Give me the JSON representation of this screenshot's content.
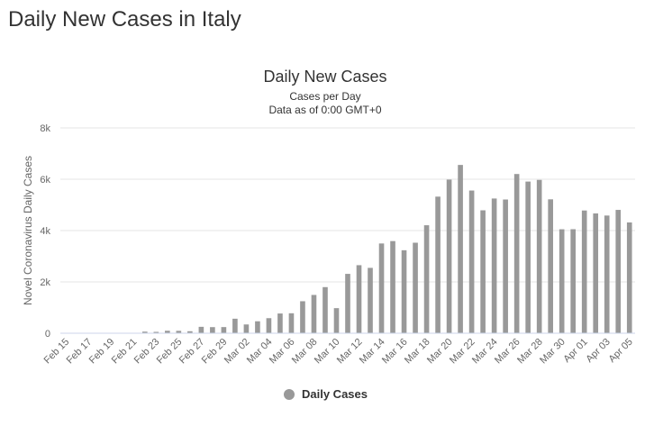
{
  "page": {
    "title": "Daily New Cases in Italy"
  },
  "colors": {
    "bar": "#999999",
    "grid": "#e6e6e6",
    "axis": "#ccd6eb"
  },
  "chart_data": {
    "type": "bar",
    "title": "Daily New Cases",
    "subtitle_lines": [
      "Cases per Day",
      "Data as of 0:00 GMT+0"
    ],
    "xlabel": "",
    "ylabel": "Novel Coronavirus Daily Cases",
    "ylim": [
      0,
      8000
    ],
    "yticks": [
      0,
      2000,
      4000,
      6000,
      8000
    ],
    "ytick_labels": [
      "0",
      "2k",
      "4k",
      "6k",
      "8k"
    ],
    "grid": true,
    "legend_position": "bottom-center",
    "categories": [
      "Feb 15",
      "Feb 16",
      "Feb 17",
      "Feb 18",
      "Feb 19",
      "Feb 20",
      "Feb 21",
      "Feb 22",
      "Feb 23",
      "Feb 24",
      "Feb 25",
      "Feb 26",
      "Feb 27",
      "Feb 28",
      "Feb 29",
      "Mar 01",
      "Mar 02",
      "Mar 03",
      "Mar 04",
      "Mar 05",
      "Mar 06",
      "Mar 07",
      "Mar 08",
      "Mar 09",
      "Mar 10",
      "Mar 11",
      "Mar 12",
      "Mar 13",
      "Mar 14",
      "Mar 15",
      "Mar 16",
      "Mar 17",
      "Mar 18",
      "Mar 19",
      "Mar 20",
      "Mar 21",
      "Mar 22",
      "Mar 23",
      "Mar 24",
      "Mar 25",
      "Mar 26",
      "Mar 27",
      "Mar 28",
      "Mar 29",
      "Mar 30",
      "Mar 31",
      "Apr 01",
      "Apr 02",
      "Apr 03",
      "Apr 04",
      "Apr 05"
    ],
    "xtick_labels": [
      "Feb 15",
      "Feb 17",
      "Feb 19",
      "Feb 21",
      "Feb 23",
      "Feb 25",
      "Feb 27",
      "Feb 29",
      "Mar 02",
      "Mar 04",
      "Mar 06",
      "Mar 08",
      "Mar 10",
      "Mar 12",
      "Mar 14",
      "Mar 16",
      "Mar 18",
      "Mar 20",
      "Mar 22",
      "Mar 24",
      "Mar 26",
      "Mar 28",
      "Mar 30",
      "Apr 01",
      "Apr 03",
      "Apr 05"
    ],
    "series": [
      {
        "name": "Daily Cases",
        "values": [
          0,
          0,
          0,
          0,
          0,
          0,
          17,
          62,
          53,
          97,
          93,
          78,
          250,
          238,
          240,
          566,
          342,
          466,
          587,
          769,
          778,
          1247,
          1492,
          1797,
          977,
          2313,
          2651,
          2547,
          3497,
          3590,
          3233,
          3526,
          4207,
          5322,
          5986,
          6557,
          5560,
          4789,
          5249,
          5210,
          6203,
          5909,
          5974,
          5217,
          4050,
          4053,
          4782,
          4668,
          4585,
          4805,
          4316
        ]
      }
    ]
  }
}
